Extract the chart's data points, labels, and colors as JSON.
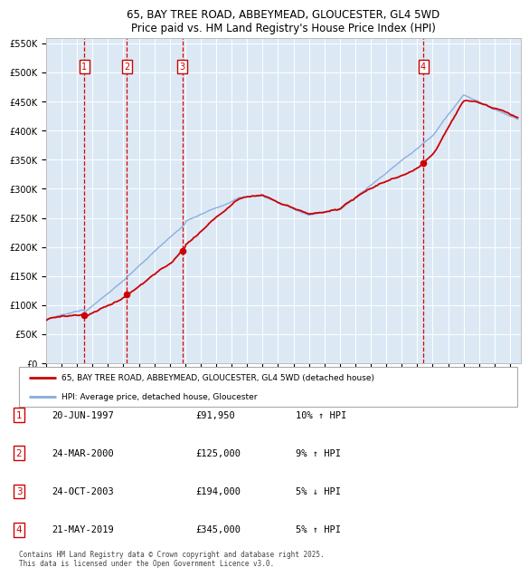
{
  "title_line1": "65, BAY TREE ROAD, ABBEYMEAD, GLOUCESTER, GL4 5WD",
  "title_line2": "Price paid vs. HM Land Registry's House Price Index (HPI)",
  "plot_bg_color": "#dce9f5",
  "ylim": [
    0,
    560000
  ],
  "yticks": [
    0,
    50000,
    100000,
    150000,
    200000,
    250000,
    300000,
    350000,
    400000,
    450000,
    500000,
    550000
  ],
  "ytick_labels": [
    "£0",
    "£50K",
    "£100K",
    "£150K",
    "£200K",
    "£250K",
    "£300K",
    "£350K",
    "£400K",
    "£450K",
    "£500K",
    "£550K"
  ],
  "xlim_start": 1995,
  "xlim_end": 2025.7,
  "purchase_dates": [
    1997.47,
    2000.23,
    2003.82,
    2019.39
  ],
  "purchase_prices": [
    91950,
    125000,
    194000,
    345000
  ],
  "purchase_labels": [
    "1",
    "2",
    "3",
    "4"
  ],
  "vline_color": "#dd0000",
  "red_line_color": "#cc0000",
  "blue_line_color": "#88aadd",
  "marker_color": "#cc0000",
  "legend_labels": [
    "65, BAY TREE ROAD, ABBEYMEAD, GLOUCESTER, GL4 5WD (detached house)",
    "HPI: Average price, detached house, Gloucester"
  ],
  "table_rows": [
    {
      "num": "1",
      "date": "20-JUN-1997",
      "price": "£91,950",
      "hpi": "10% ↑ HPI"
    },
    {
      "num": "2",
      "date": "24-MAR-2000",
      "price": "£125,000",
      "hpi": "9% ↑ HPI"
    },
    {
      "num": "3",
      "date": "24-OCT-2003",
      "price": "£194,000",
      "hpi": "5% ↓ HPI"
    },
    {
      "num": "4",
      "date": "21-MAY-2019",
      "price": "£345,000",
      "hpi": "5% ↑ HPI"
    }
  ],
  "footer": "Contains HM Land Registry data © Crown copyright and database right 2025.\nThis data is licensed under the Open Government Licence v3.0."
}
